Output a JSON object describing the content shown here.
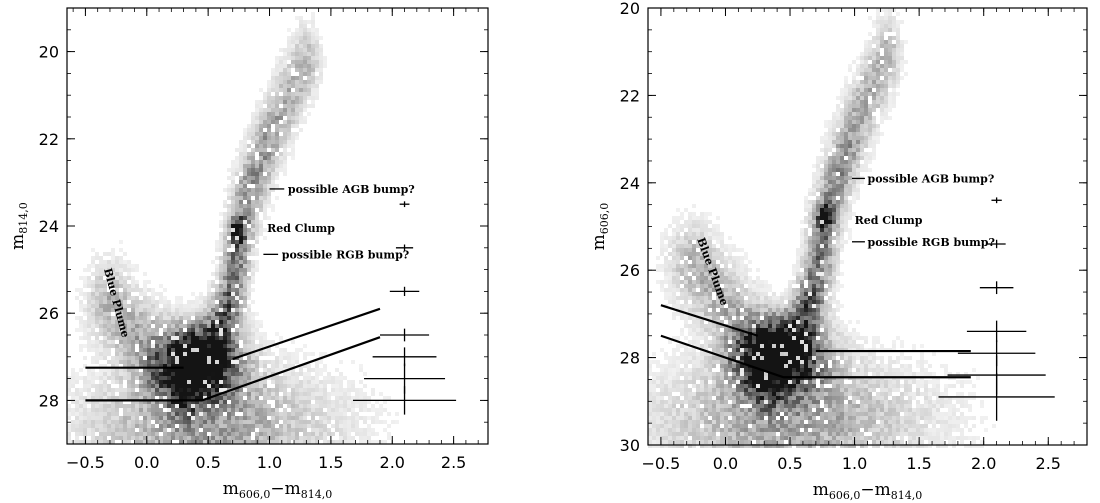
{
  "chart_data": [
    {
      "type": "scatter",
      "panel": "left",
      "xlabel": {
        "main": "m",
        "sub": "606,0",
        "mid": "−m",
        "sub2": "814,0"
      },
      "ylabel": {
        "main": "m",
        "sub": "814,0"
      },
      "xlim": [
        -0.65,
        2.78
      ],
      "ylim": [
        29.0,
        19.0
      ],
      "y_inverted": true,
      "xticks": [
        -0.5,
        0.0,
        0.5,
        1.0,
        1.5,
        2.0,
        2.5
      ],
      "xtick_labels": [
        "−0.5",
        "0.0",
        "0.5",
        "1.0",
        "1.5",
        "2.0",
        "2.5"
      ],
      "yticks": [
        20,
        22,
        24,
        26,
        28
      ],
      "ytick_labels": [
        "20",
        "22",
        "24",
        "26",
        "28"
      ],
      "density_features": {
        "rgb": [
          [
            0.3,
            27.3
          ],
          [
            0.55,
            26.8
          ],
          [
            0.7,
            25.5
          ],
          [
            0.75,
            24.3
          ],
          [
            0.82,
            23.3
          ],
          [
            0.95,
            22.3
          ],
          [
            1.1,
            21.3
          ],
          [
            1.3,
            20.2
          ]
        ],
        "red_clump": [
          0.74,
          24.1
        ],
        "blue_plume": [
          [
            -0.3,
            25.8
          ],
          [
            0.05,
            26.9
          ],
          [
            0.3,
            27.5
          ]
        ]
      },
      "cut_lines": [
        [
          [
            -0.5,
            27.25
          ],
          [
            0.3,
            27.25
          ]
        ],
        [
          [
            0.7,
            27.05
          ],
          [
            1.9,
            25.9
          ]
        ],
        [
          [
            -0.5,
            28.0
          ],
          [
            0.45,
            28.0
          ],
          [
            1.9,
            26.55
          ]
        ]
      ],
      "annotations": [
        {
          "text": "possible AGB bump?",
          "x": 1.15,
          "y": 23.15,
          "tick": [
            [
              1.0,
              23.15
            ],
            [
              1.12,
              23.15
            ]
          ]
        },
        {
          "text": "Red Clump",
          "x": 0.98,
          "y": 24.05
        },
        {
          "text": "possible RGB bump?",
          "x": 1.1,
          "y": 24.65,
          "tick": [
            [
              0.95,
              24.65
            ],
            [
              1.07,
              24.65
            ]
          ]
        },
        {
          "text": "Blue Plume",
          "x": -0.35,
          "y": 24.9,
          "rotate": 75
        }
      ],
      "error_bars": [
        {
          "x": 2.1,
          "y": 23.5,
          "xerr": 0.04,
          "yerr": 0.02
        },
        {
          "x": 2.1,
          "y": 24.5,
          "xerr": 0.07,
          "yerr": 0.03
        },
        {
          "x": 2.1,
          "y": 25.5,
          "xerr": 0.12,
          "yerr": 0.06
        },
        {
          "x": 2.1,
          "y": 26.5,
          "xerr": 0.2,
          "yerr": 0.1
        },
        {
          "x": 2.1,
          "y": 27.0,
          "xerr": 0.26,
          "yerr": 0.17
        },
        {
          "x": 2.1,
          "y": 27.5,
          "xerr": 0.33,
          "yerr": 0.3
        },
        {
          "x": 2.1,
          "y": 28.0,
          "xerr": 0.42,
          "yerr": 0.28
        }
      ]
    },
    {
      "type": "scatter",
      "panel": "right",
      "xlabel": {
        "main": "m",
        "sub": "606,0",
        "mid": "−m",
        "sub2": "814,0"
      },
      "ylabel": {
        "main": "m",
        "sub": "606,0"
      },
      "xlim": [
        -0.6,
        2.8
      ],
      "ylim": [
        30.0,
        20.0
      ],
      "y_inverted": true,
      "xticks": [
        -0.5,
        0.0,
        0.5,
        1.0,
        1.5,
        2.0,
        2.5
      ],
      "xtick_labels": [
        "−0.5",
        "0.0",
        "0.5",
        "1.0",
        "1.5",
        "2.0",
        "2.5"
      ],
      "yticks": [
        20,
        22,
        24,
        26,
        28,
        30
      ],
      "ytick_labels": [
        "20",
        "22",
        "24",
        "26",
        "28",
        "30"
      ],
      "density_features": {
        "rgb": [
          [
            0.3,
            28.1
          ],
          [
            0.55,
            27.6
          ],
          [
            0.7,
            26.3
          ],
          [
            0.76,
            25.1
          ],
          [
            0.85,
            24.0
          ],
          [
            0.97,
            23.0
          ],
          [
            1.1,
            22.0
          ],
          [
            1.25,
            21.0
          ]
        ],
        "red_clump": [
          0.77,
          24.8
        ],
        "blue_plume": [
          [
            -0.25,
            25.9
          ],
          [
            0.05,
            27.0
          ],
          [
            0.3,
            28.2
          ]
        ]
      },
      "cut_lines": [
        [
          [
            -0.5,
            26.8
          ],
          [
            0.25,
            27.5
          ]
        ],
        [
          [
            -0.5,
            27.5
          ],
          [
            0.45,
            28.45
          ],
          [
            1.9,
            28.45
          ]
        ],
        [
          [
            0.7,
            27.85
          ],
          [
            1.9,
            27.85
          ]
        ]
      ],
      "annotations": [
        {
          "text": "possible AGB bump?",
          "x": 1.1,
          "y": 23.9,
          "tick": [
            [
              0.98,
              23.9
            ],
            [
              1.08,
              23.9
            ]
          ]
        },
        {
          "text": "Red Clump",
          "x": 1.0,
          "y": 24.85
        },
        {
          "text": "possible RGB bump?",
          "x": 1.1,
          "y": 25.35,
          "tick": [
            [
              0.98,
              25.35
            ],
            [
              1.08,
              25.35
            ]
          ]
        },
        {
          "text": "Blue Plume",
          "x": -0.22,
          "y": 25.2,
          "rotate": 70
        }
      ],
      "error_bars": [
        {
          "x": 2.1,
          "y": 24.4,
          "xerr": 0.04,
          "yerr": 0.02
        },
        {
          "x": 2.1,
          "y": 25.4,
          "xerr": 0.07,
          "yerr": 0.05
        },
        {
          "x": 2.1,
          "y": 26.4,
          "xerr": 0.13,
          "yerr": 0.1
        },
        {
          "x": 2.1,
          "y": 27.4,
          "xerr": 0.23,
          "yerr": 0.2
        },
        {
          "x": 2.1,
          "y": 27.9,
          "xerr": 0.3,
          "yerr": 0.25
        },
        {
          "x": 2.1,
          "y": 28.4,
          "xerr": 0.38,
          "yerr": 0.4
        },
        {
          "x": 2.1,
          "y": 28.9,
          "xerr": 0.45,
          "yerr": 0.5
        }
      ]
    }
  ]
}
